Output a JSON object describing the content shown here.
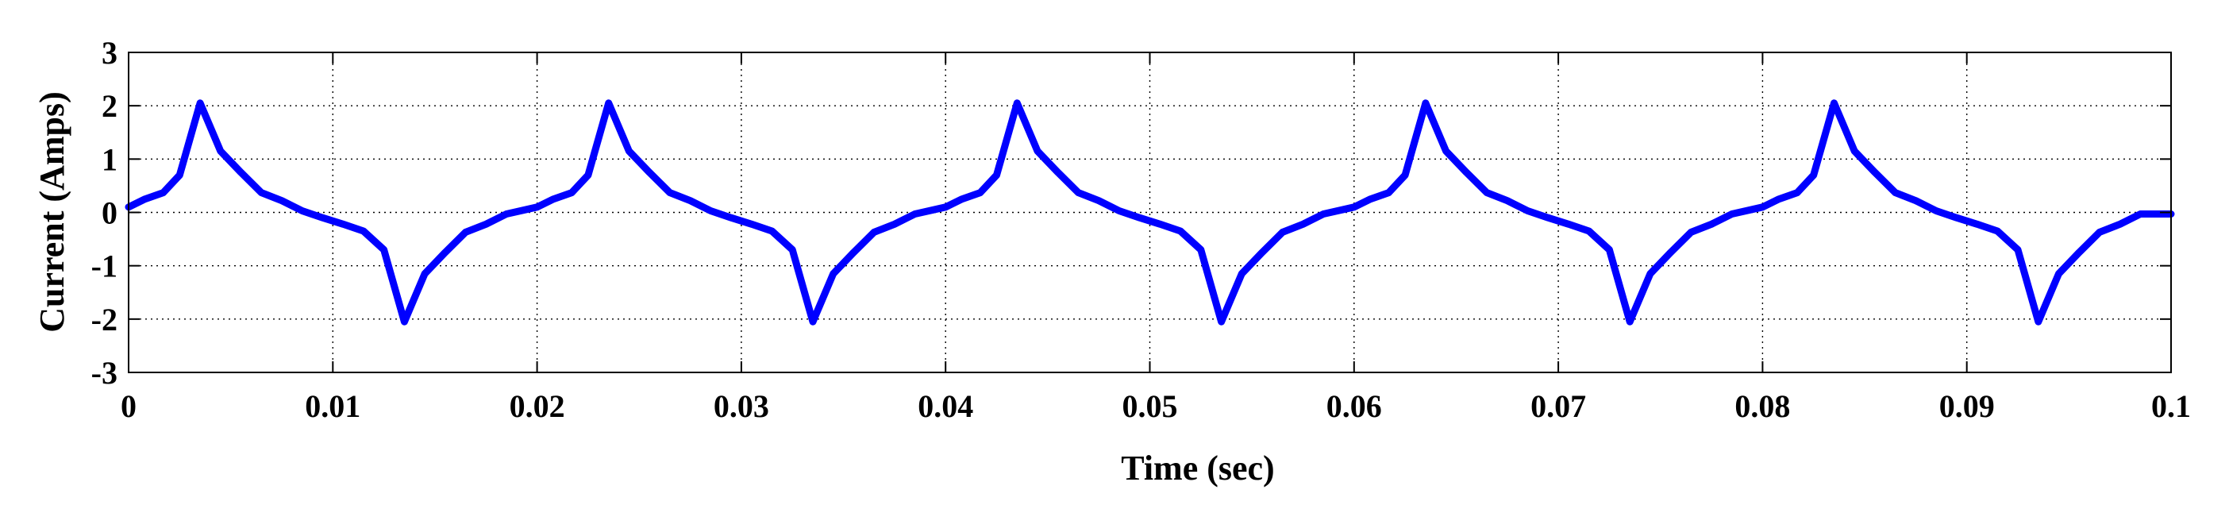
{
  "chart_data": {
    "type": "line",
    "title": "",
    "xlabel": "Time (sec)",
    "ylabel": "Current (Amps)",
    "xlim": [
      0,
      0.1
    ],
    "ylim": [
      -3,
      3
    ],
    "grid": true,
    "grid_style": "dotted",
    "line_color": "#0000ff",
    "x_ticks": [
      0,
      0.01,
      0.02,
      0.03,
      0.04,
      0.05,
      0.06,
      0.07,
      0.08,
      0.09,
      0.1
    ],
    "x_tick_labels": [
      "0",
      "0.01",
      "0.02",
      "0.03",
      "0.04",
      "0.05",
      "0.06",
      "0.07",
      "0.08",
      "0.09",
      "0.1"
    ],
    "y_ticks": [
      -3,
      -2,
      -1,
      0,
      1,
      2,
      3
    ],
    "y_tick_labels": [
      "-3",
      "-2",
      "-1",
      "0",
      "1",
      "2",
      "3"
    ],
    "period": 0.02,
    "cycles": 5,
    "cycle_points": [
      [
        0.0,
        0.1
      ],
      [
        0.0008,
        0.25
      ],
      [
        0.0017,
        0.37
      ],
      [
        0.0025,
        0.7
      ],
      [
        0.0035,
        2.05
      ],
      [
        0.0045,
        1.15
      ],
      [
        0.0055,
        0.75
      ],
      [
        0.0065,
        0.37
      ],
      [
        0.0075,
        0.22
      ],
      [
        0.0085,
        0.03
      ],
      [
        0.0095,
        -0.1
      ],
      [
        0.0105,
        -0.22
      ],
      [
        0.0115,
        -0.35
      ],
      [
        0.0125,
        -0.7
      ],
      [
        0.0135,
        -2.05
      ],
      [
        0.0145,
        -1.15
      ],
      [
        0.0155,
        -0.75
      ],
      [
        0.0165,
        -0.37
      ],
      [
        0.0175,
        -0.22
      ],
      [
        0.0185,
        -0.03
      ],
      [
        0.0195,
        0.1
      ]
    ],
    "end_point": [
      0.1,
      -0.03
    ]
  }
}
